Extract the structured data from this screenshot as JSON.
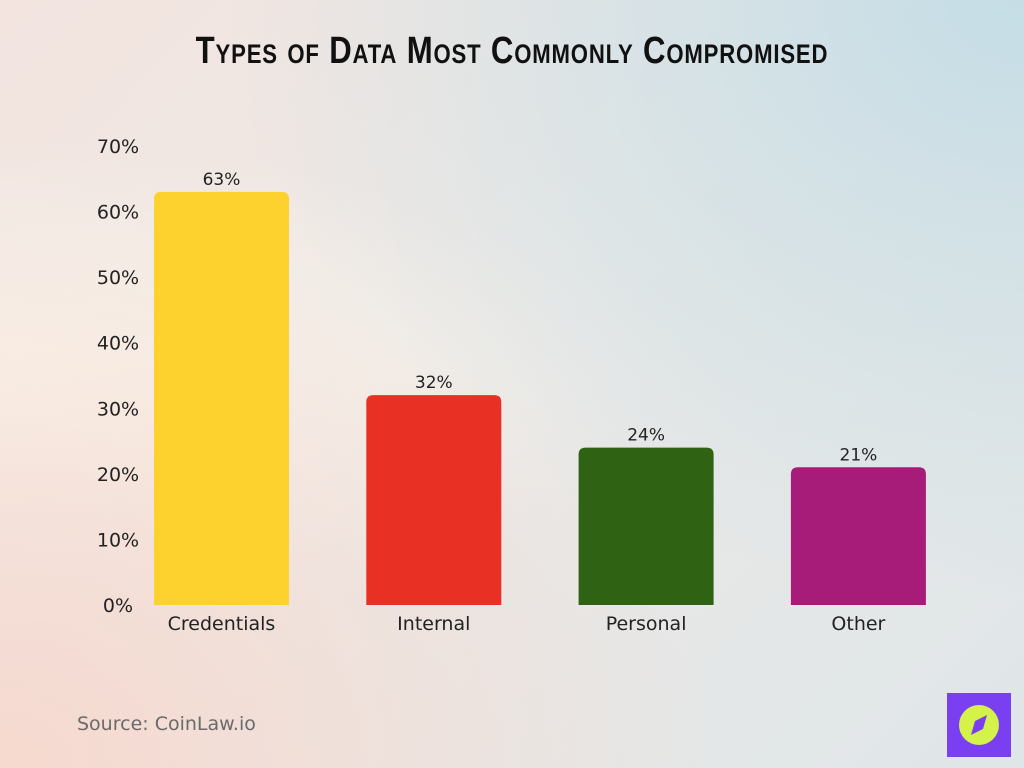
{
  "chart_data": {
    "type": "bar",
    "title": "Types of Data Most Commonly Compromised",
    "categories": [
      "Credentials",
      "Internal",
      "Personal",
      "Other"
    ],
    "values": [
      63,
      32,
      24,
      21
    ],
    "data_labels": [
      "63%",
      "32%",
      "24%",
      "21%"
    ],
    "colors": [
      "#fdd22e",
      "#e83024",
      "#2f6213",
      "#a81c79"
    ],
    "xlabel": "",
    "ylabel": "",
    "ylim": [
      0,
      70
    ],
    "yticks": [
      0,
      10,
      20,
      30,
      40,
      50,
      60,
      70
    ],
    "ytick_labels": [
      "0%",
      "10%",
      "20%",
      "30%",
      "40%",
      "50%",
      "60%",
      "70%"
    ],
    "grid": false,
    "legend": "none"
  },
  "source": "Source: CoinLaw.io",
  "logo": {
    "icon": "compass-icon",
    "bg_color": "#7b3ff2",
    "fg_color": "#d4f24a"
  }
}
